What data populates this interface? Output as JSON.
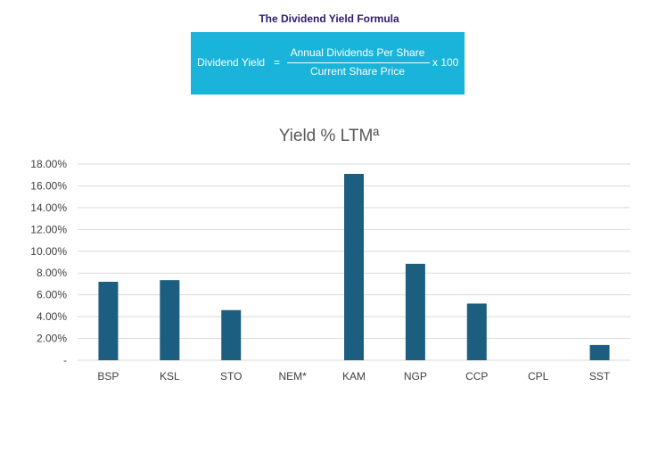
{
  "formula": {
    "title": "The Dividend Yield Formula",
    "lhs": "Dividend Yield",
    "equals": "=",
    "numerator": "Annual Dividends Per Share",
    "denominator": "Current Share Price",
    "multiplier": "x 100"
  },
  "chart_data": {
    "type": "bar",
    "title": "Yield % LTMª",
    "categories": [
      "BSP",
      "KSL",
      "STO",
      "NEM*",
      "KAM",
      "NGP",
      "CCP",
      "CPL",
      "SST"
    ],
    "values": [
      7.2,
      7.35,
      4.6,
      0,
      17.1,
      8.85,
      5.2,
      0,
      1.4
    ],
    "ylim": [
      0,
      18
    ],
    "yticks": [
      0,
      2,
      4,
      6,
      8,
      10,
      12,
      14,
      16,
      18
    ],
    "ytick_labels": [
      "-",
      "2.00%",
      "4.00%",
      "6.00%",
      "8.00%",
      "10.00%",
      "12.00%",
      "14.00%",
      "16.00%",
      "18.00%"
    ],
    "grid": true,
    "bar_color": "#1b5e80",
    "grid_color": "#d9d9d9"
  }
}
